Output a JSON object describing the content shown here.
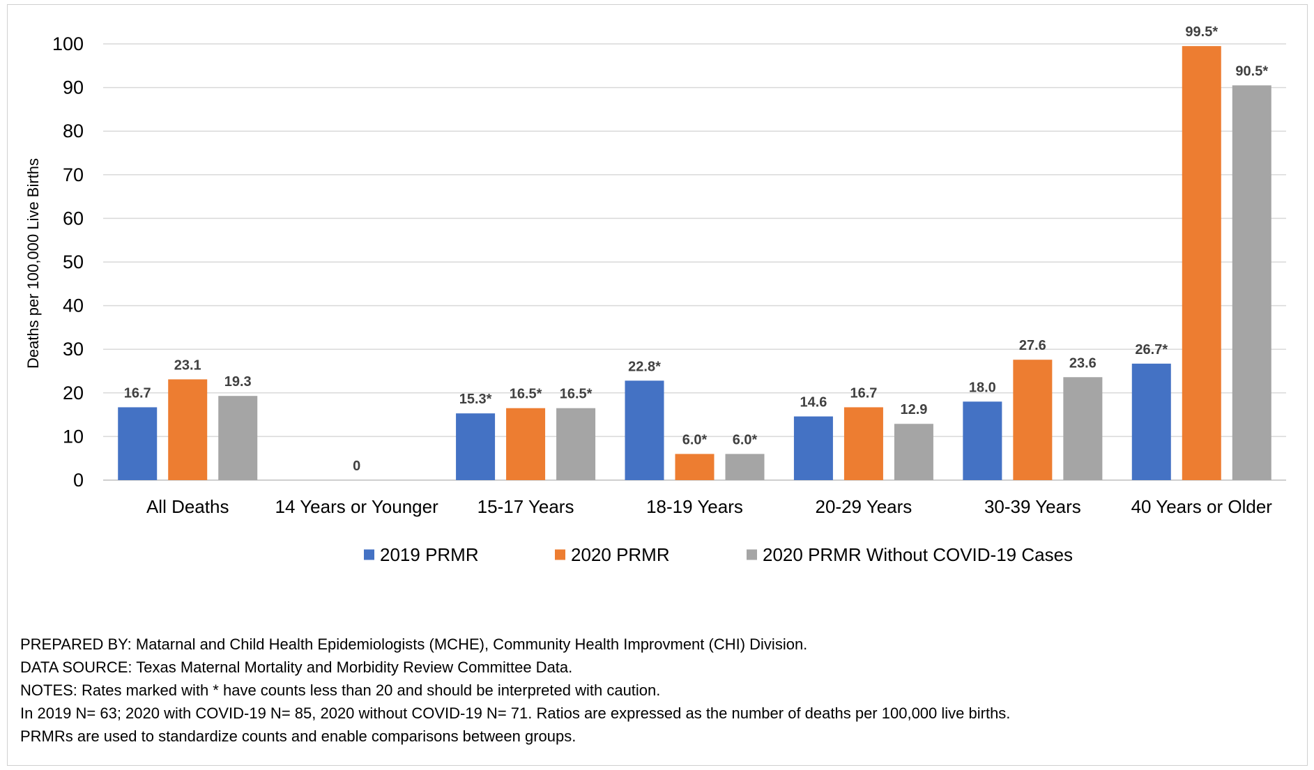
{
  "chart_data": {
    "type": "bar",
    "title": "",
    "xlabel": "",
    "ylabel": "Deaths per 100,000 Live Births",
    "ylim": [
      0,
      100
    ],
    "yticks": [
      0,
      10,
      20,
      30,
      40,
      50,
      60,
      70,
      80,
      90,
      100
    ],
    "grid": true,
    "legend_position": "bottom",
    "categories": [
      "All Deaths",
      "14 Years or Younger",
      "15-17 Years",
      "18-19 Years",
      "20-29 Years",
      "30-39 Years",
      "40 Years or Older"
    ],
    "series": [
      {
        "name": "2019 PRMR",
        "color": "#4472C4",
        "values": [
          16.7,
          0,
          15.3,
          22.8,
          14.6,
          18.0,
          26.7
        ],
        "labels": [
          "16.7",
          "",
          "15.3*",
          "22.8*",
          "14.6",
          "18.0",
          "26.7*"
        ]
      },
      {
        "name": "2020 PRMR",
        "color": "#ED7D31",
        "values": [
          23.1,
          0,
          16.5,
          6.0,
          16.7,
          27.6,
          99.5
        ],
        "labels": [
          "23.1",
          "0",
          "16.5*",
          "6.0*",
          "16.7",
          "27.6",
          "99.5*"
        ]
      },
      {
        "name": "2020 PRMR Without COVID-19 Cases",
        "color": "#A5A5A5",
        "values": [
          19.3,
          0,
          16.5,
          6.0,
          12.9,
          23.6,
          90.5
        ],
        "labels": [
          "19.3",
          "",
          "16.5*",
          "6.0*",
          "12.9",
          "23.6",
          "90.5*"
        ]
      }
    ]
  },
  "notes": [
    "PREPARED BY: Matarnal and Child Health Epidemiologists (MCHE), Community Health Improvment (CHI) Division.",
    "DATA SOURCE: Texas Maternal Mortality and Morbidity Review Committee Data.",
    "NOTES: Rates marked with * have counts less than 20 and should be interpreted with caution.",
    "In 2019 N= 63; 2020 with COVID-19 N= 85, 2020 without COVID-19 N= 71. Ratios are expressed as the number of deaths per 100,000 live births.",
    "PRMRs are used to standardize counts and enable comparisons between groups."
  ]
}
